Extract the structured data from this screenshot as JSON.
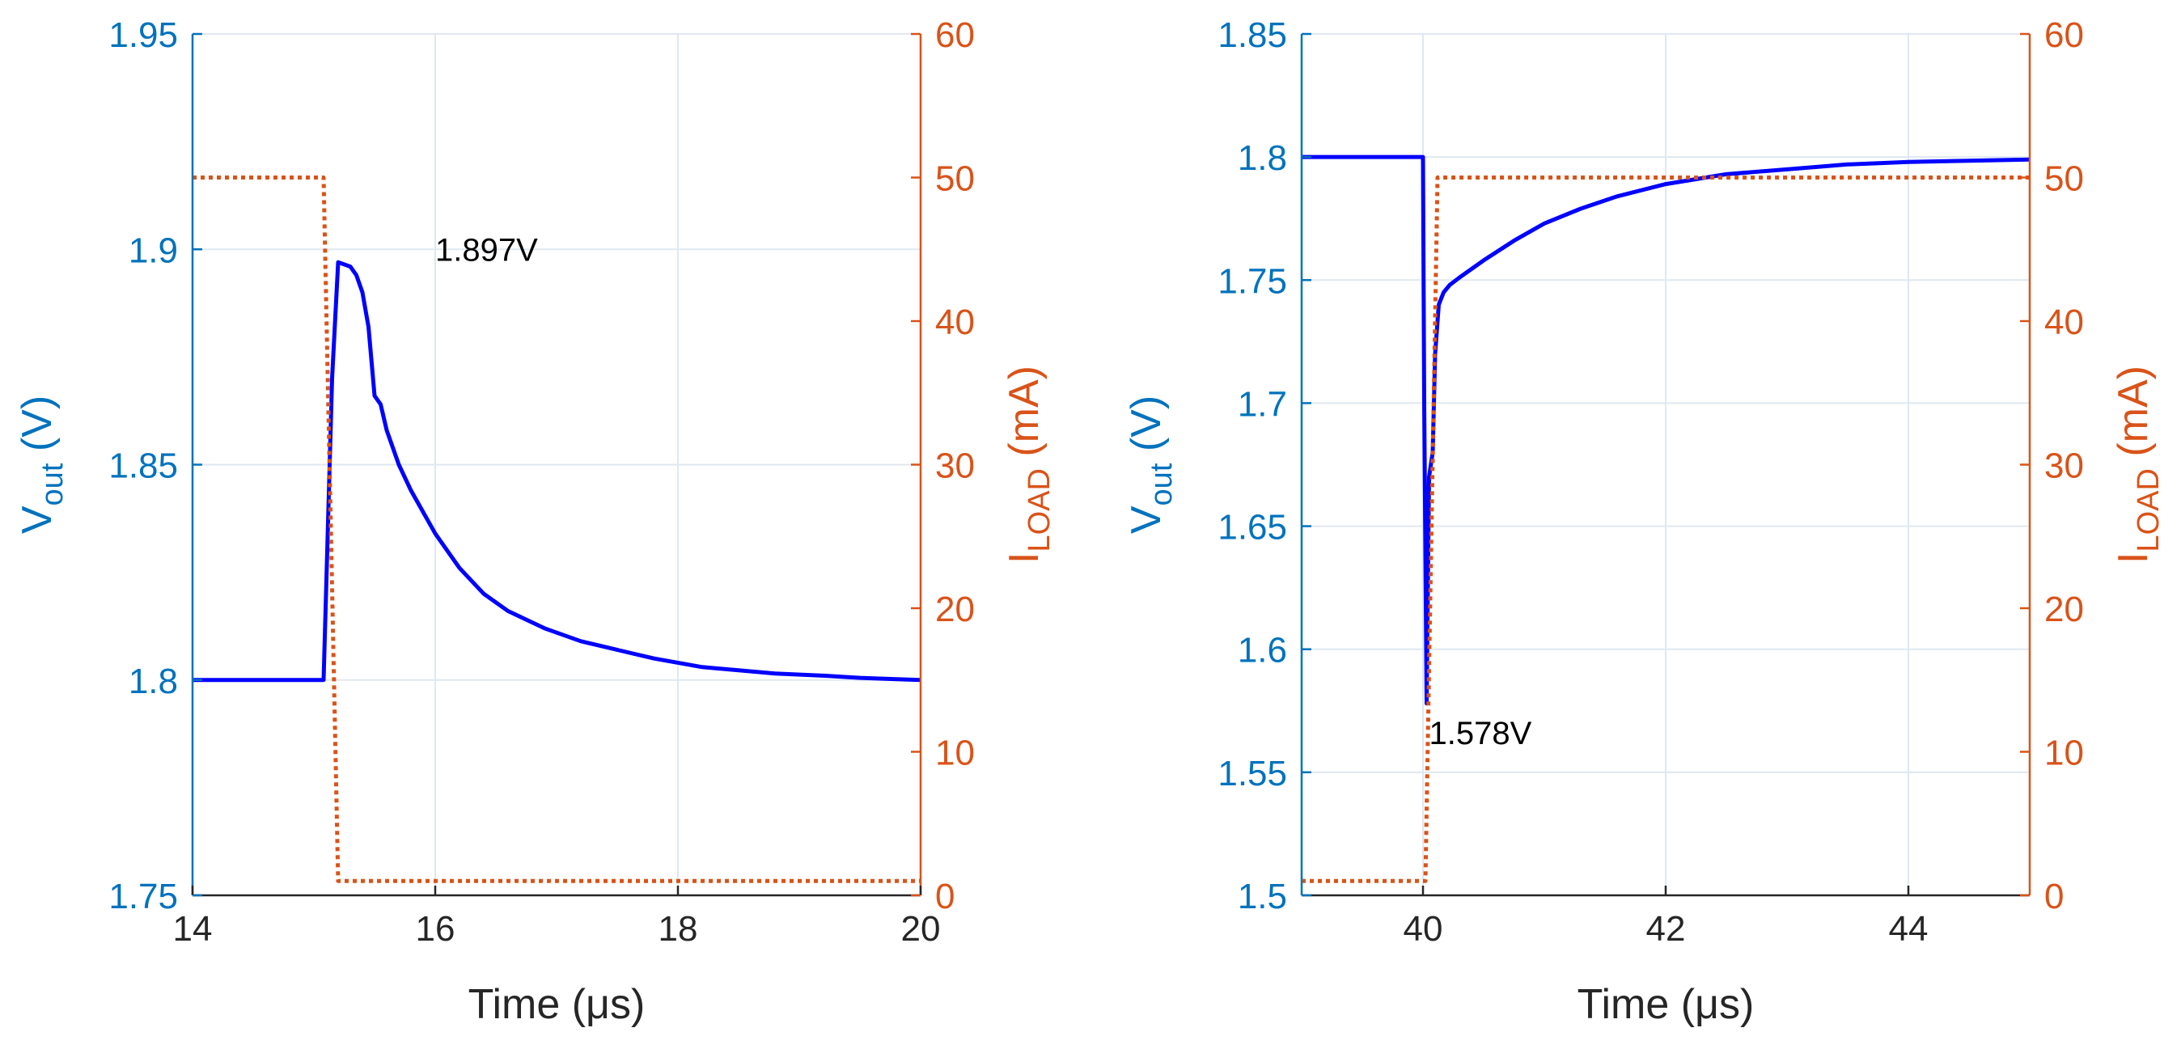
{
  "colors": {
    "vout": "#0000FF",
    "iload": "#D95319",
    "left_axis": "#0072BD",
    "right_axis": "#D95319",
    "x_axis": "#262626",
    "grid": "#DFE8F0"
  },
  "chart_data": [
    {
      "type": "line",
      "panel": "left",
      "xlabel": "Time (μs)",
      "ylabel_left": {
        "main": "V",
        "sub": "out",
        "rest": " (V)"
      },
      "ylabel_right": {
        "main": "I",
        "sub": "LOAD",
        "rest": " (mA)"
      },
      "xlim": [
        14,
        20
      ],
      "ylim_left": [
        1.75,
        1.95
      ],
      "ylim_right": [
        0,
        60
      ],
      "xticks": [
        14,
        16,
        18,
        20
      ],
      "xtick_labels": [
        "14",
        "16",
        "18",
        "20"
      ],
      "yticks_left": [
        1.75,
        1.8,
        1.85,
        1.9,
        1.95
      ],
      "ytick_labels_left": [
        "1.75",
        "1.8",
        "1.85",
        "1.9",
        "1.95"
      ],
      "yticks_right": [
        0,
        10,
        20,
        30,
        40,
        50,
        60
      ],
      "ytick_labels_right": [
        "0",
        "10",
        "20",
        "30",
        "40",
        "50",
        "60"
      ],
      "grid": true,
      "series": [
        {
          "name": "Vout",
          "axis": "left",
          "style": "solid",
          "x": [
            14,
            15.08,
            15.1,
            15.15,
            15.2,
            15.3,
            15.35,
            15.4,
            15.45,
            15.5,
            15.55,
            15.6,
            15.7,
            15.8,
            16.0,
            16.2,
            16.4,
            16.6,
            16.9,
            17.2,
            17.5,
            17.8,
            18.2,
            18.8,
            19.2,
            19.5,
            19.8,
            20
          ],
          "y": [
            1.8,
            1.8,
            1.82,
            1.87,
            1.897,
            1.896,
            1.894,
            1.89,
            1.882,
            1.866,
            1.864,
            1.858,
            1.85,
            1.844,
            1.834,
            1.826,
            1.82,
            1.816,
            1.812,
            1.809,
            1.807,
            1.805,
            1.803,
            1.8015,
            1.801,
            1.8005,
            1.8002,
            1.8
          ]
        },
        {
          "name": "ILOAD",
          "axis": "right",
          "style": "dotted",
          "x": [
            14,
            15.08,
            15.2,
            20
          ],
          "y": [
            50,
            50,
            1,
            1
          ]
        }
      ],
      "annotations": [
        {
          "text": "1.897V",
          "x": 16.0,
          "y": 1.9
        }
      ]
    },
    {
      "type": "line",
      "panel": "right",
      "xlabel": "Time (μs)",
      "ylabel_left": {
        "main": "V",
        "sub": "out",
        "rest": " (V)"
      },
      "ylabel_right": {
        "main": "I",
        "sub": "LOAD",
        "rest": " (mA)"
      },
      "xlim": [
        39,
        45
      ],
      "ylim_left": [
        1.5,
        1.85
      ],
      "ylim_right": [
        0,
        60
      ],
      "xticks": [
        40,
        42,
        44
      ],
      "xtick_labels": [
        "40",
        "42",
        "44"
      ],
      "yticks_left": [
        1.5,
        1.55,
        1.6,
        1.65,
        1.7,
        1.75,
        1.8,
        1.85
      ],
      "ytick_labels_left": [
        "1.5",
        "1.55",
        "1.6",
        "1.65",
        "1.7",
        "1.75",
        "1.8",
        "1.85"
      ],
      "yticks_right": [
        0,
        10,
        20,
        30,
        40,
        50,
        60
      ],
      "ytick_labels_right": [
        "0",
        "10",
        "20",
        "30",
        "40",
        "50",
        "60"
      ],
      "grid": true,
      "series": [
        {
          "name": "Vout",
          "axis": "left",
          "style": "solid",
          "x": [
            39,
            40.0,
            40.01,
            40.03,
            40.05,
            40.08,
            40.1,
            40.13,
            40.17,
            40.22,
            40.3,
            40.5,
            40.75,
            41.0,
            41.3,
            41.6,
            42.0,
            42.5,
            43.0,
            43.5,
            44.0,
            44.5,
            45
          ],
          "y": [
            1.8,
            1.8,
            1.7,
            1.578,
            1.67,
            1.68,
            1.72,
            1.74,
            1.745,
            1.748,
            1.751,
            1.758,
            1.766,
            1.773,
            1.779,
            1.784,
            1.789,
            1.793,
            1.795,
            1.797,
            1.798,
            1.7985,
            1.799
          ]
        },
        {
          "name": "ILOAD",
          "axis": "right",
          "style": "dotted",
          "x": [
            39,
            40.02,
            40.12,
            45
          ],
          "y": [
            1,
            1,
            50,
            50
          ]
        }
      ],
      "annotations": [
        {
          "text": "1.578V",
          "x": 40.05,
          "y": 1.566
        }
      ]
    }
  ]
}
